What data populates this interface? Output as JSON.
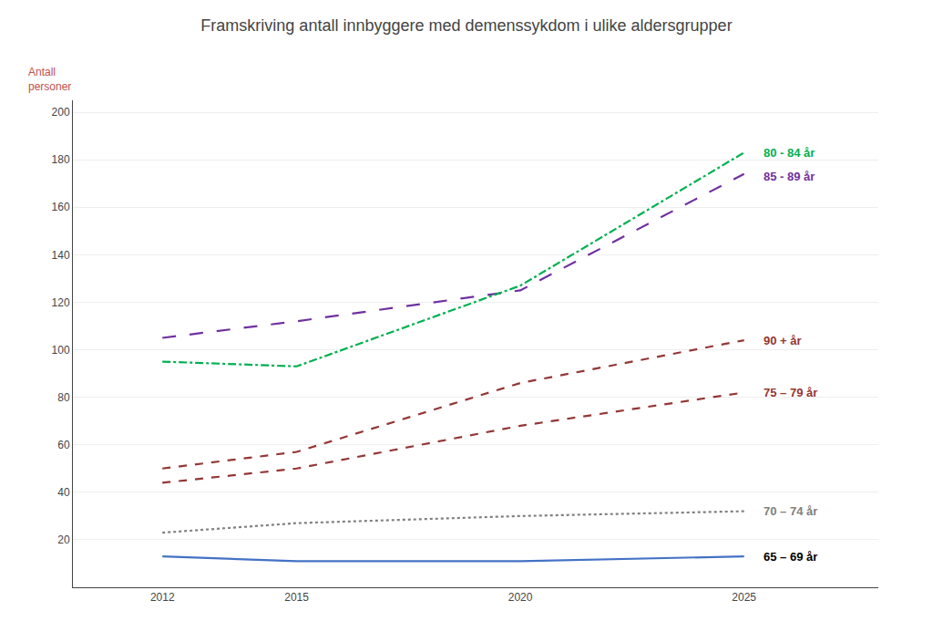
{
  "chart_data": {
    "type": "line",
    "title": "Framskriving antall innbyggere med demenssykdom i ulike aldersgrupper",
    "ylabel": {
      "text": "Antall\npersoner",
      "color": "#C0504D"
    },
    "x": [
      2012,
      2015,
      2020,
      2025
    ],
    "series": [
      {
        "name": "65 – 69 år",
        "values": [
          13,
          11,
          11,
          13
        ],
        "color": "#4472C4",
        "line_style": "solid"
      },
      {
        "name": "70 – 74 år",
        "values": [
          23,
          27,
          30,
          32
        ],
        "color": "#808080",
        "line_style": "dot"
      },
      {
        "name": "75 – 79 år",
        "values": [
          44,
          50,
          68,
          82
        ],
        "color": "#943634",
        "line_style": "dash"
      },
      {
        "name": "90 + år",
        "values": [
          50,
          57,
          86,
          104
        ],
        "color": "#943634",
        "line_style": "dash"
      },
      {
        "name": "85 - 89 år",
        "values": [
          105,
          112,
          125,
          174
        ],
        "color": "#7030A0",
        "line_style": "longdash"
      },
      {
        "name": "80 - 84 år",
        "values": [
          95,
          93,
          127,
          183
        ],
        "color": "#00B050",
        "line_style": "dashdot"
      }
    ],
    "xlim": [
      2010,
      2028
    ],
    "ylim": [
      0,
      205
    ],
    "xticks": [
      2012,
      2015,
      2020,
      2025
    ],
    "yticks": [
      20,
      40,
      60,
      80,
      100,
      120,
      140,
      160,
      180,
      200
    ],
    "grid": "y",
    "annotations": [
      {
        "text": "80 - 84 år",
        "x": 2025.4,
        "y": 183,
        "color": "#00B050"
      },
      {
        "text": "85 - 89 år",
        "x": 2025.4,
        "y": 173,
        "color": "#7030A0"
      },
      {
        "text": "90 + år",
        "x": 2025.4,
        "y": 104,
        "color": "#943634"
      },
      {
        "text": "75 – 79 år",
        "x": 2025.4,
        "y": 82,
        "color": "#943634"
      },
      {
        "text": "70 – 74 år",
        "x": 2025.4,
        "y": 32,
        "color": "#808080"
      },
      {
        "text": "65 – 69 år",
        "x": 2025.4,
        "y": 13,
        "color": "#000000"
      }
    ]
  }
}
